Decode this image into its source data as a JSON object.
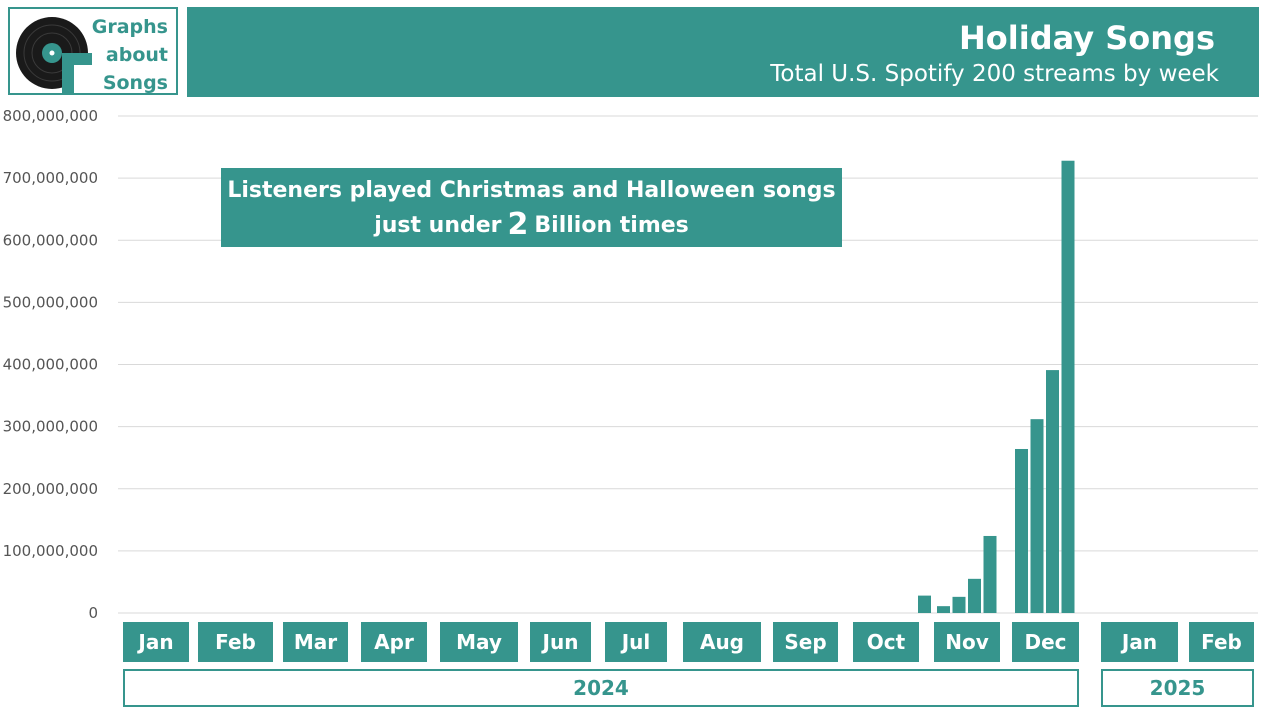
{
  "logo": {
    "line1": "Graphs",
    "line2": "about",
    "line3": "Songs"
  },
  "annotation": {
    "line1": "Listeners played Christmas and Halloween songs",
    "line2_prefix": "just under",
    "line2_number": "2",
    "line2_suffix": "Billion times"
  },
  "colors": {
    "accent": "#36958d",
    "grid": "#d9d9d9",
    "text": "#555555"
  },
  "chart_data": {
    "type": "bar",
    "title": "Holiday Songs",
    "subtitle": "Total U.S. Spotify 200 streams by week",
    "xlabel": "",
    "ylabel": "",
    "ylim": [
      0,
      800000000
    ],
    "y_ticks": [
      "0",
      "100,000,000",
      "200,000,000",
      "300,000,000",
      "400,000,000",
      "500,000,000",
      "600,000,000",
      "700,000,000",
      "800,000,000"
    ],
    "grid": true,
    "months": [
      {
        "label": "Jan",
        "year": "2024"
      },
      {
        "label": "Feb",
        "year": "2024"
      },
      {
        "label": "Mar",
        "year": "2024"
      },
      {
        "label": "Apr",
        "year": "2024"
      },
      {
        "label": "May",
        "year": "2024"
      },
      {
        "label": "Jun",
        "year": "2024"
      },
      {
        "label": "Jul",
        "year": "2024"
      },
      {
        "label": "Aug",
        "year": "2024"
      },
      {
        "label": "Sep",
        "year": "2024"
      },
      {
        "label": "Oct",
        "year": "2024"
      },
      {
        "label": "Nov",
        "year": "2024"
      },
      {
        "label": "Dec",
        "year": "2024"
      },
      {
        "label": "Jan",
        "year": "2025"
      },
      {
        "label": "Feb",
        "year": "2025"
      }
    ],
    "years": [
      "2024",
      "2025"
    ],
    "weekly_streams": [
      {
        "month": "Oct",
        "week": 5,
        "value": 28000000
      },
      {
        "month": "Nov",
        "week": 1,
        "value": 11000000
      },
      {
        "month": "Nov",
        "week": 2,
        "value": 26000000
      },
      {
        "month": "Nov",
        "week": 3,
        "value": 55000000
      },
      {
        "month": "Nov",
        "week": 4,
        "value": 124000000
      },
      {
        "month": "Dec",
        "week": 1,
        "value": 264000000
      },
      {
        "month": "Dec",
        "week": 2,
        "value": 312000000
      },
      {
        "month": "Dec",
        "week": 3,
        "value": 391000000
      },
      {
        "month": "Dec",
        "week": 4,
        "value": 728000000
      }
    ]
  }
}
